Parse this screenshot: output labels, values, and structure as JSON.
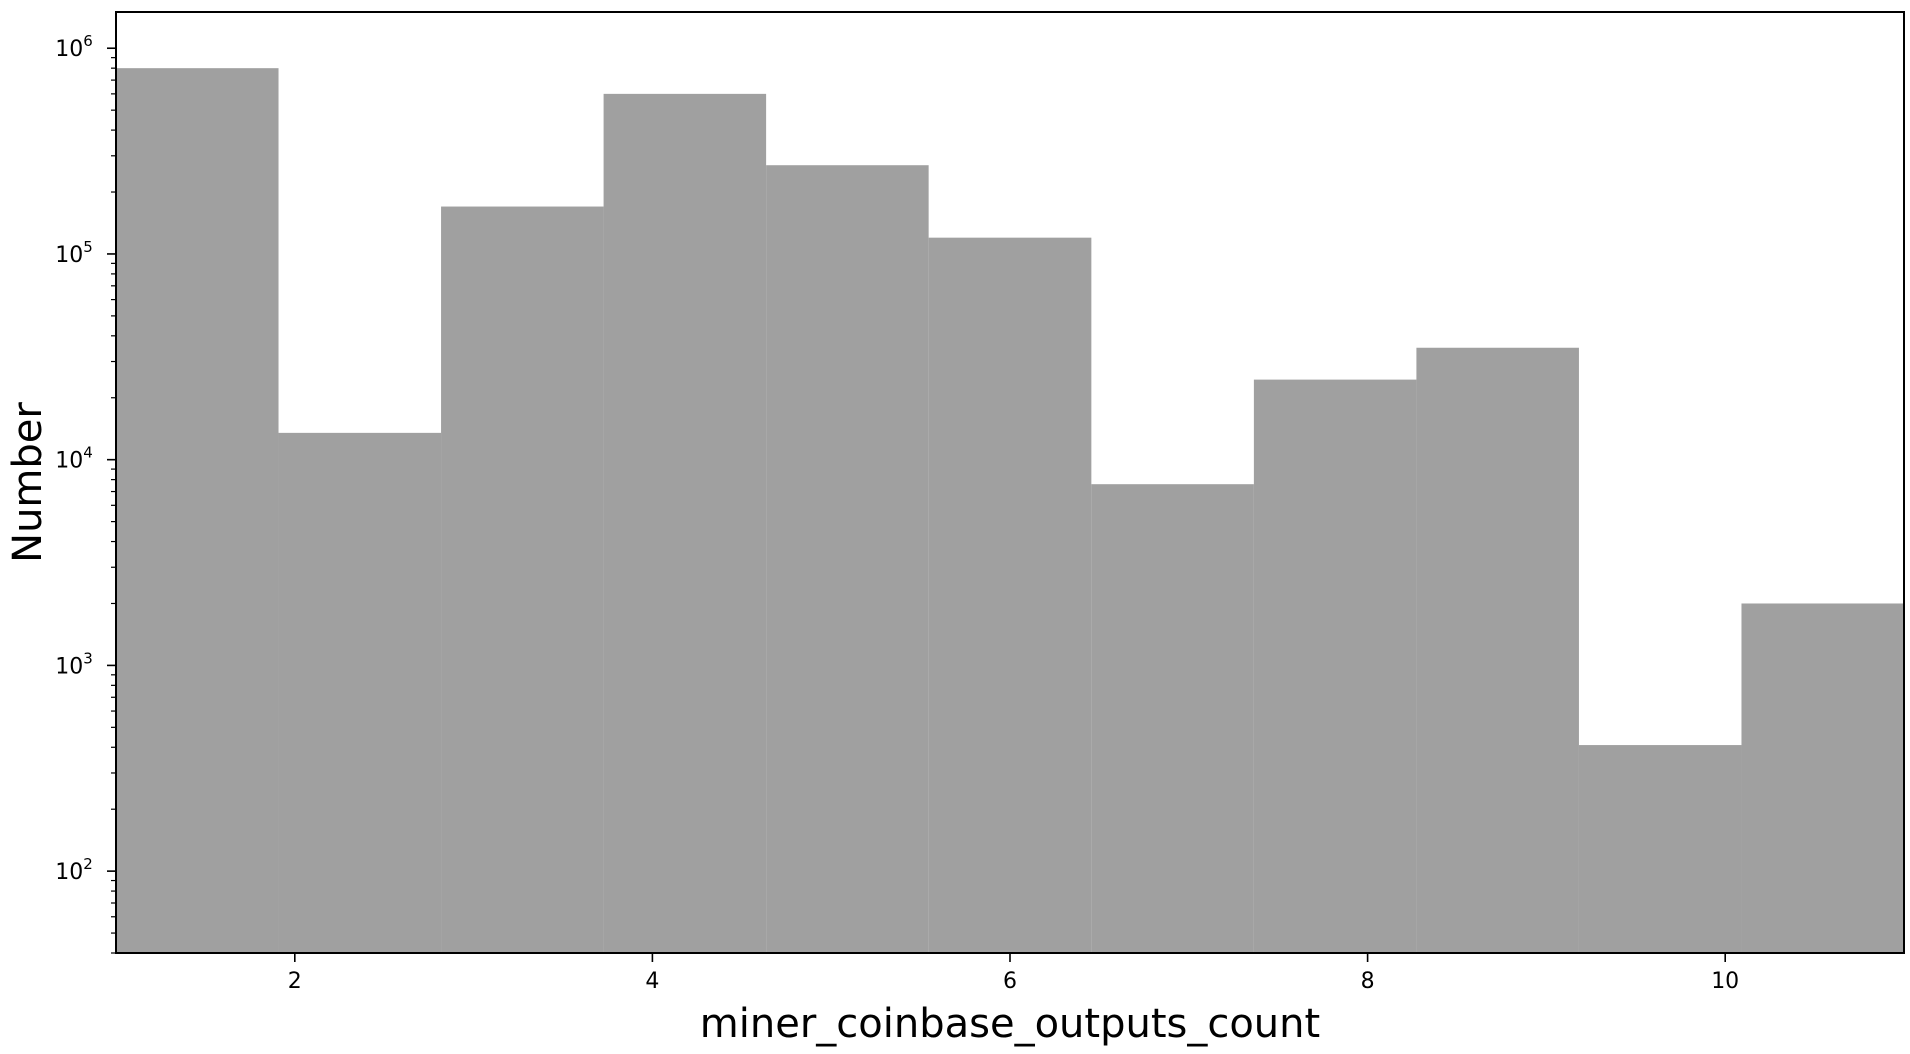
{
  "chart_data": {
    "type": "bar",
    "xlabel": "miner_coinbase_outputs_count",
    "ylabel": "Number",
    "xlim": [
      1,
      11
    ],
    "ylim": [
      40,
      1500000
    ],
    "y_scale": "log",
    "x_ticks": [
      2,
      4,
      6,
      8,
      10
    ],
    "y_ticks": [
      {
        "value": 100,
        "base": "10",
        "exp": "2"
      },
      {
        "value": 1000,
        "base": "10",
        "exp": "3"
      },
      {
        "value": 10000,
        "base": "10",
        "exp": "4"
      },
      {
        "value": 100000,
        "base": "10",
        "exp": "5"
      },
      {
        "value": 1000000,
        "base": "10",
        "exp": "6"
      }
    ],
    "bar_color": "#a0a0a0",
    "grid": false,
    "bins": [
      {
        "x0": 1.0,
        "x1": 1.909,
        "value": 800000
      },
      {
        "x0": 1.909,
        "x1": 2.818,
        "value": 13500
      },
      {
        "x0": 2.818,
        "x1": 3.727,
        "value": 170000
      },
      {
        "x0": 3.727,
        "x1": 4.636,
        "value": 600000
      },
      {
        "x0": 4.636,
        "x1": 5.545,
        "value": 270000
      },
      {
        "x0": 5.545,
        "x1": 6.455,
        "value": 120000
      },
      {
        "x0": 6.455,
        "x1": 7.364,
        "value": 7600
      },
      {
        "x0": 7.364,
        "x1": 8.273,
        "value": 24500
      },
      {
        "x0": 8.273,
        "x1": 9.182,
        "value": 35000
      },
      {
        "x0": 9.182,
        "x1": 10.091,
        "value": 410
      },
      {
        "x0": 10.091,
        "x1": 11.0,
        "value": 2000
      }
    ]
  }
}
